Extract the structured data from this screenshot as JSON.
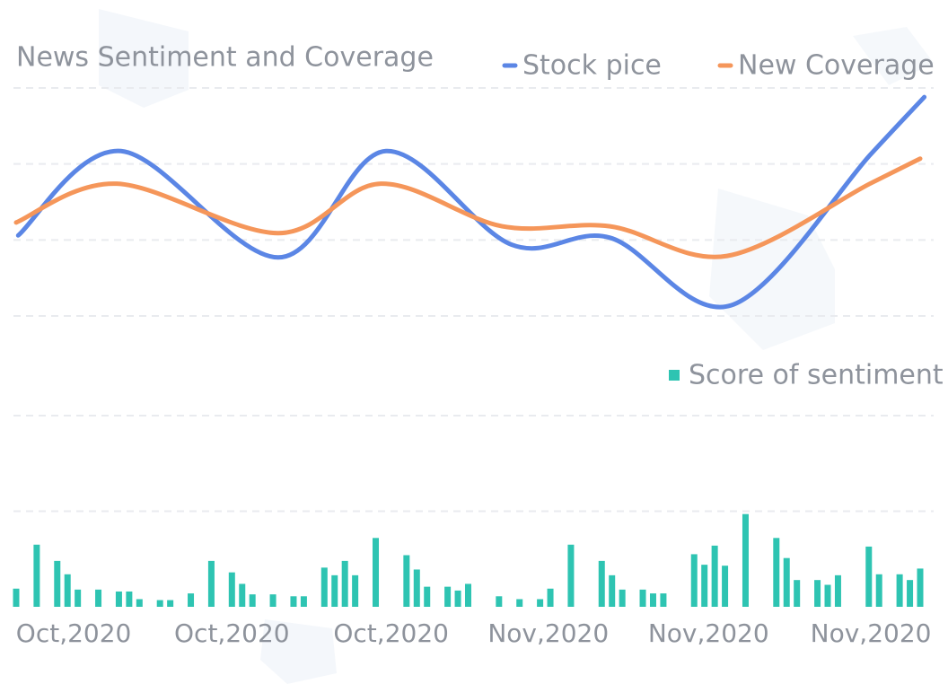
{
  "chart_data": [
    {
      "type": "line",
      "title": "News Sentiment and Coverage",
      "xlim": [
        0,
        88
      ],
      "ylim": [
        0,
        3
      ],
      "yticks": [
        0,
        1,
        2,
        3
      ],
      "grid": true,
      "series": [
        {
          "name": "Stock pice",
          "color": "#5b86e5",
          "x": [
            0.2,
            10.2,
            25.5,
            36,
            48.2,
            57.8,
            69.6,
            83.2,
            88.4
          ],
          "values": [
            1.06,
            2.17,
            0.77,
            2.17,
            0.94,
            1.03,
            0.14,
            2.13,
            2.88
          ]
        },
        {
          "name": "New Coverage",
          "color": "#f5965a",
          "x": [
            0,
            9.8,
            25.5,
            35.5,
            47.3,
            57.8,
            69.2,
            83.1,
            88
          ],
          "values": [
            1.23,
            1.74,
            1.09,
            1.74,
            1.18,
            1.18,
            0.79,
            1.74,
            2.07
          ]
        }
      ]
    },
    {
      "type": "bar",
      "xlim": [
        0,
        88
      ],
      "xticks": [
        {
          "value": 5.6,
          "label": "Oct,2020"
        },
        {
          "value": 21,
          "label": "Oct,2020"
        },
        {
          "value": 36.5,
          "label": "Oct,2020"
        },
        {
          "value": 51.8,
          "label": "Nov,2020"
        },
        {
          "value": 67.4,
          "label": "Nov,2020"
        },
        {
          "value": 83.2,
          "label": "Nov,2020"
        }
      ],
      "ylim": [
        0,
        2
      ],
      "yticks": [
        1,
        2
      ],
      "grid": true,
      "series": [
        {
          "name": "Score of sentiment",
          "color": "#2ec4b2",
          "x": [
            0,
            2,
            4,
            5,
            6,
            8,
            10,
            11,
            12,
            14,
            15,
            17,
            19,
            21,
            22,
            23,
            25,
            27,
            28,
            30,
            31,
            32,
            33,
            35,
            38,
            39,
            40,
            42,
            43,
            44,
            47,
            49,
            51,
            52,
            54,
            57,
            58,
            59,
            61,
            62,
            63,
            66,
            67,
            68,
            69,
            71,
            74,
            75,
            76,
            78,
            79,
            80,
            83,
            84,
            86,
            87,
            88
          ],
          "values": [
            0.19,
            0.65,
            0.48,
            0.34,
            0.18,
            0.18,
            0.16,
            0.16,
            0.08,
            0.07,
            0.07,
            0.14,
            0.48,
            0.36,
            0.24,
            0.13,
            0.13,
            0.11,
            0.11,
            0.41,
            0.33,
            0.48,
            0.33,
            0.72,
            0.54,
            0.39,
            0.21,
            0.21,
            0.17,
            0.24,
            0.11,
            0.08,
            0.08,
            0.19,
            0.65,
            0.48,
            0.33,
            0.18,
            0.18,
            0.14,
            0.14,
            0.55,
            0.44,
            0.64,
            0.43,
            0.97,
            0.72,
            0.51,
            0.28,
            0.28,
            0.23,
            0.33,
            0.63,
            0.34,
            0.34,
            0.28,
            0.4
          ]
        }
      ]
    }
  ]
}
